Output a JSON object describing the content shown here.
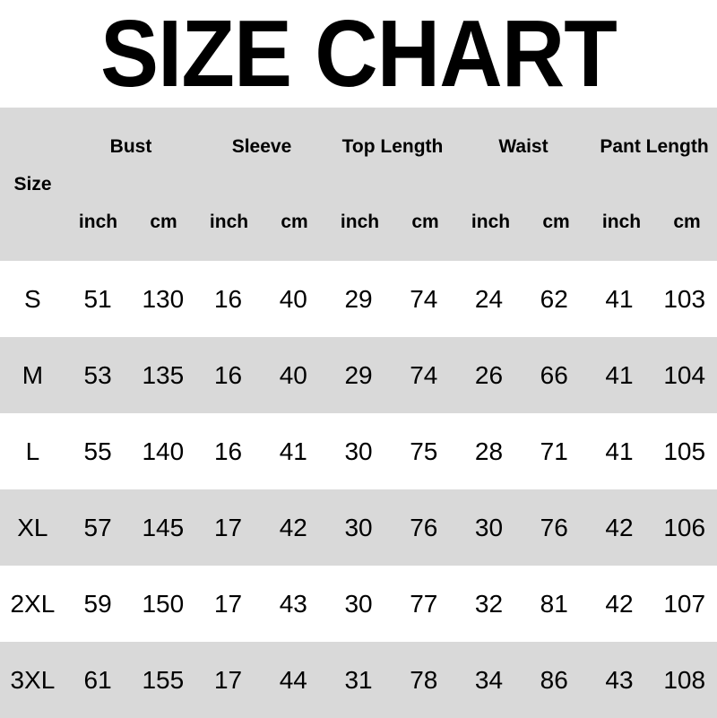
{
  "title": "SIZE CHART",
  "header": {
    "size_label": "Size",
    "groups": [
      "Bust",
      "Sleeve",
      "Top Length",
      "Waist",
      "Pant Length"
    ],
    "units": [
      "inch",
      "cm"
    ]
  },
  "colors": {
    "header_bg": "#d9d9d9",
    "alt_row_bg": "#d9d9d9",
    "row_bg": "#ffffff"
  },
  "rows": [
    [
      "S",
      "51",
      "130",
      "16",
      "40",
      "29",
      "74",
      "24",
      "62",
      "41",
      "103"
    ],
    [
      "M",
      "53",
      "135",
      "16",
      "40",
      "29",
      "74",
      "26",
      "66",
      "41",
      "104"
    ],
    [
      "L",
      "55",
      "140",
      "16",
      "41",
      "30",
      "75",
      "28",
      "71",
      "41",
      "105"
    ],
    [
      "XL",
      "57",
      "145",
      "17",
      "42",
      "30",
      "76",
      "30",
      "76",
      "42",
      "106"
    ],
    [
      "2XL",
      "59",
      "150",
      "17",
      "43",
      "30",
      "77",
      "32",
      "81",
      "42",
      "107"
    ],
    [
      "3XL",
      "61",
      "155",
      "17",
      "44",
      "31",
      "78",
      "34",
      "86",
      "43",
      "108"
    ]
  ]
}
